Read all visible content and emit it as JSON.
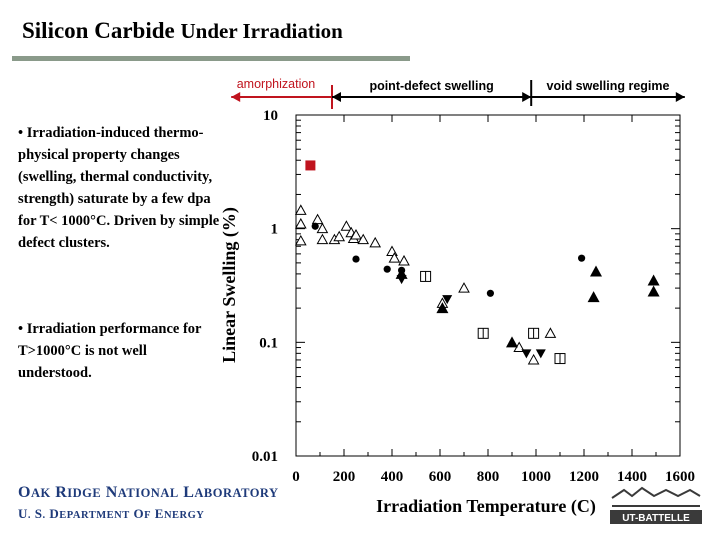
{
  "slide": {
    "title_main": "Silicon Carbide",
    "title_sub": "Under Irradiation",
    "bullets": [
      "• Irradiation-induced thermo-physical property changes (swelling, thermal conductivity, strength) saturate by a few dpa for T< 1000°C. Driven by simple defect clusters.",
      "• Irradiation performance for T>1000°C is not well understood."
    ],
    "footer_lab": "Oak Ridge National Laboratory",
    "footer_doe": "U. S. Department of Energy",
    "logo_text": "UT-BATTELLE"
  },
  "colors": {
    "title_rule": "#8a9a8a",
    "footer_text": "#1e3a7a",
    "amorphization": "#c0141e",
    "axis": "#000000"
  },
  "chart_data": {
    "type": "scatter",
    "title": "",
    "xlabel": "Irradiation Temperature (C)",
    "ylabel": "Linear Swelling (%)",
    "xlim": [
      0,
      1600
    ],
    "ylim": [
      0.01,
      10
    ],
    "yscale": "log",
    "x_ticks": [
      0,
      200,
      400,
      600,
      800,
      1000,
      1200,
      1400,
      1600
    ],
    "x_tick_labels": [
      "0",
      "200",
      "400",
      "600",
      "800",
      "1000",
      "1200",
      "1400",
      "1600"
    ],
    "y_ticks": [
      0.01,
      0.1,
      1,
      10
    ],
    "y_tick_labels": [
      "0.01",
      "0.1",
      "1",
      "10"
    ],
    "regimes": [
      {
        "label": "amorphization",
        "from": -270,
        "to": 150,
        "direction": "left"
      },
      {
        "label": "point-defect swelling",
        "from": 150,
        "to": 980,
        "direction": "both"
      },
      {
        "label": "void swelling regime",
        "from": 980,
        "to": 1620,
        "direction": "right"
      }
    ],
    "series": [
      {
        "name": "amorphized",
        "marker": "square-filled-red",
        "points": [
          [
            60,
            3.6
          ]
        ]
      },
      {
        "name": "open triangles",
        "marker": "triangle-open",
        "points": [
          [
            20,
            1.45
          ],
          [
            20,
            1.1
          ],
          [
            20,
            0.78
          ],
          [
            90,
            1.2
          ],
          [
            110,
            1.0
          ],
          [
            110,
            0.8
          ],
          [
            160,
            0.8
          ],
          [
            180,
            0.85
          ],
          [
            210,
            1.05
          ],
          [
            230,
            0.92
          ],
          [
            240,
            0.82
          ],
          [
            250,
            0.88
          ],
          [
            280,
            0.8
          ],
          [
            330,
            0.75
          ],
          [
            400,
            0.63
          ],
          [
            410,
            0.55
          ],
          [
            450,
            0.52
          ],
          [
            610,
            0.22
          ],
          [
            700,
            0.3
          ],
          [
            930,
            0.09
          ],
          [
            990,
            0.07
          ],
          [
            1060,
            0.12
          ]
        ]
      },
      {
        "name": "filled circles",
        "marker": "circle-filled",
        "points": [
          [
            80,
            1.05
          ],
          [
            250,
            0.54
          ],
          [
            380,
            0.44
          ],
          [
            440,
            0.43
          ],
          [
            810,
            0.27
          ],
          [
            1190,
            0.55
          ]
        ]
      },
      {
        "name": "filled triangles",
        "marker": "triangle-filled",
        "points": [
          [
            440,
            0.4
          ],
          [
            610,
            0.2
          ],
          [
            900,
            0.1
          ],
          [
            1250,
            0.42
          ],
          [
            1240,
            0.25
          ],
          [
            1490,
            0.35
          ],
          [
            1490,
            0.28
          ]
        ]
      },
      {
        "name": "filled inverted triangles",
        "marker": "triangle-down-filled",
        "points": [
          [
            440,
            0.36
          ],
          [
            630,
            0.24
          ],
          [
            960,
            0.08
          ],
          [
            1020,
            0.08
          ]
        ]
      },
      {
        "name": "open squares",
        "marker": "square-open",
        "points": [
          [
            540,
            0.38
          ],
          [
            780,
            0.12
          ],
          [
            990,
            0.12
          ],
          [
            1100,
            0.072
          ]
        ]
      }
    ]
  }
}
